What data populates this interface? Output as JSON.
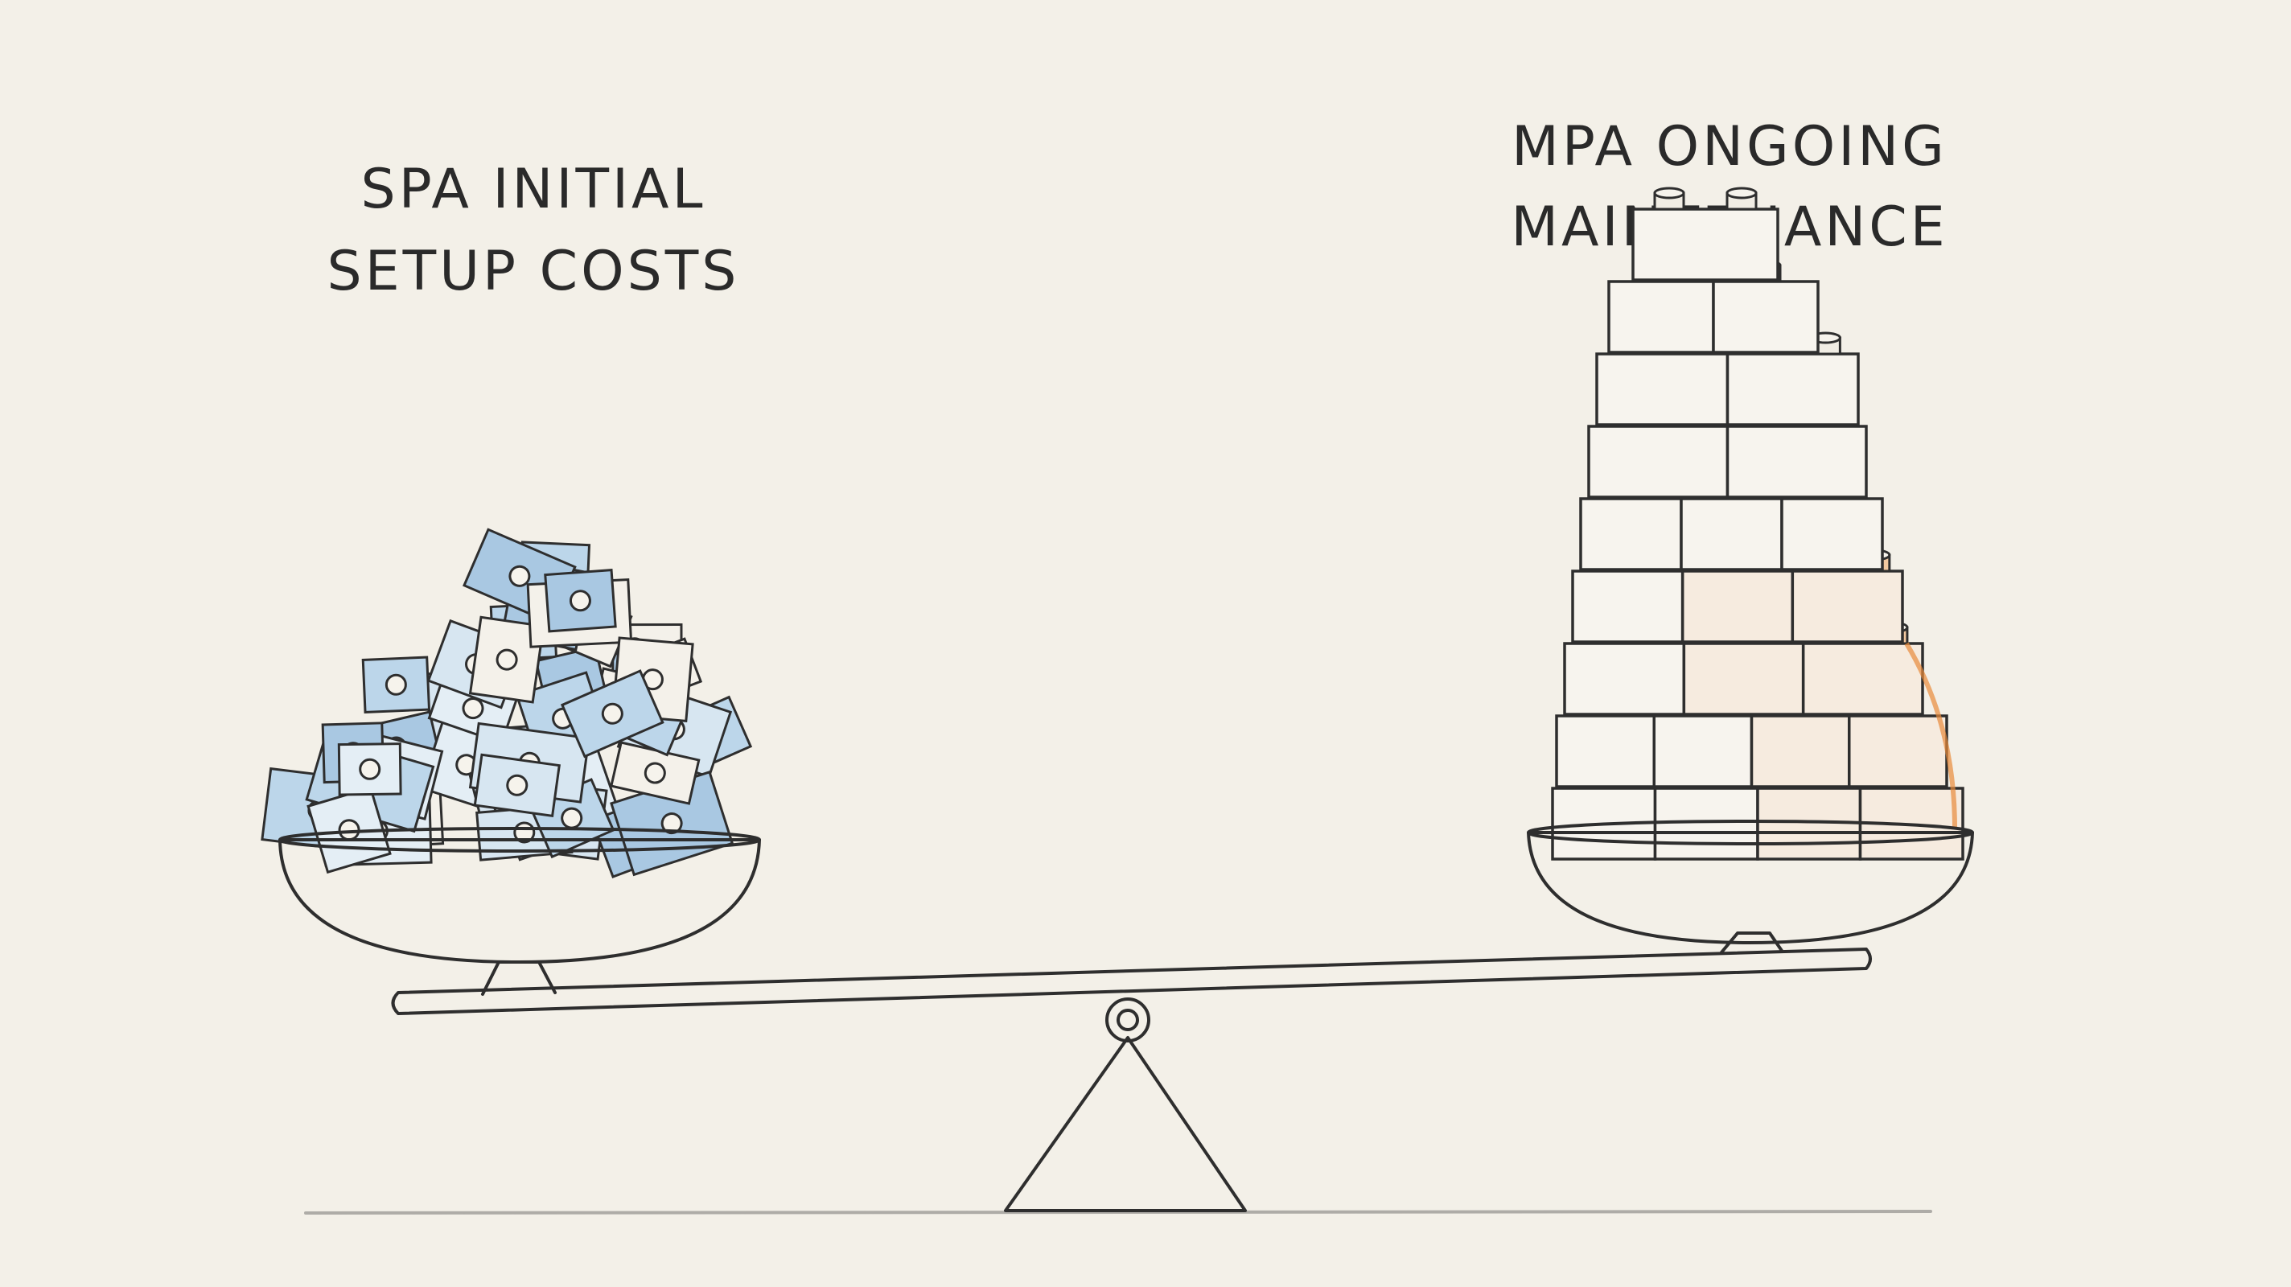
{
  "labels": {
    "left": {
      "lines": [
        "SPA INITIAL",
        "SETUP COSTS"
      ]
    },
    "right": {
      "lines": [
        "MPA ONGOING",
        "MAINTENANCE"
      ]
    }
  }
}
